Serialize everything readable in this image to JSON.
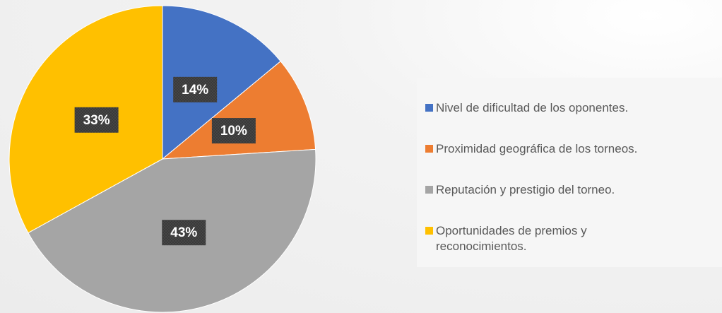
{
  "chart_data": {
    "type": "pie",
    "categories": [
      "Nivel de dificultad de los oponentes.",
      "Proximidad geográfica de los torneos.",
      "Reputación y prestigio del torneo.",
      "Oportunidades de premios y reconocimientos."
    ],
    "values": [
      14,
      10,
      43,
      33
    ],
    "value_labels": [
      "14%",
      "10%",
      "43%",
      "33%"
    ],
    "colors": [
      "#4472c4",
      "#ed7d31",
      "#a5a5a5",
      "#ffc000"
    ],
    "legend": "right"
  }
}
